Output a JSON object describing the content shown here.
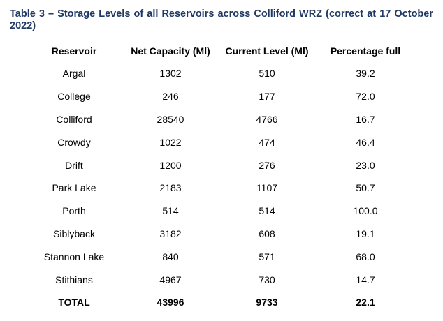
{
  "caption": "Table 3 – Storage Levels of all Reservoirs across Colliford WRZ (correct at 17 October 2022)",
  "colors": {
    "caption": "#1f3864",
    "text": "#000000",
    "background": "#ffffff"
  },
  "table": {
    "headers": [
      "Reservoir",
      "Net Capacity (Ml)",
      "Current Level (Ml)",
      "Percentage full"
    ],
    "rows": [
      [
        "Argal",
        "1302",
        "510",
        "39.2"
      ],
      [
        "College",
        "246",
        "177",
        "72.0"
      ],
      [
        "Colliford",
        "28540",
        "4766",
        "16.7"
      ],
      [
        "Crowdy",
        "1022",
        "474",
        "46.4"
      ],
      [
        "Drift",
        "1200",
        "276",
        "23.0"
      ],
      [
        "Park Lake",
        "2183",
        "1107",
        "50.7"
      ],
      [
        "Porth",
        "514",
        "514",
        "100.0"
      ],
      [
        "Siblyback",
        "3182",
        "608",
        "19.1"
      ],
      [
        "Stannon Lake",
        "840",
        "571",
        "68.0"
      ],
      [
        "Stithians",
        "4967",
        "730",
        "14.7"
      ]
    ],
    "total": [
      "TOTAL",
      "43996",
      "9733",
      "22.1"
    ]
  }
}
